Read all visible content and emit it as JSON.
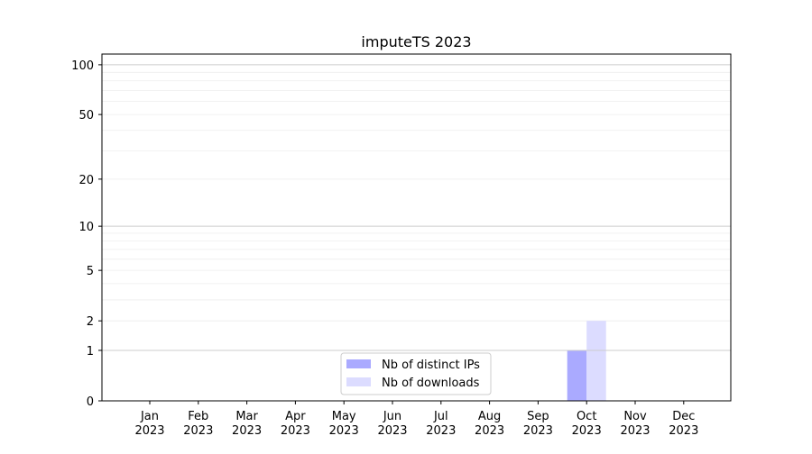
{
  "chart_data": {
    "type": "bar",
    "title": "imputeTS 2023",
    "xlabel": "",
    "ylabel": "",
    "yscale": "symlog (log of 1+y)",
    "ylim": [
      0,
      116
    ],
    "yticks": [
      0,
      1,
      2,
      5,
      10,
      20,
      50,
      100
    ],
    "grid": true,
    "legend_position": "lower-center",
    "categories": [
      "Jan\n2023",
      "Feb\n2023",
      "Mar\n2023",
      "Apr\n2023",
      "May\n2023",
      "Jun\n2023",
      "Jul\n2023",
      "Aug\n2023",
      "Sep\n2023",
      "Oct\n2023",
      "Nov\n2023",
      "Dec\n2023"
    ],
    "series": [
      {
        "name": "Nb of distinct IPs",
        "color": "#aaaaff",
        "values": [
          0,
          0,
          0,
          0,
          0,
          0,
          0,
          0,
          0,
          1,
          0,
          0
        ]
      },
      {
        "name": "Nb of downloads",
        "color": "#dcdcff",
        "values": [
          0,
          0,
          0,
          0,
          0,
          0,
          0,
          0,
          0,
          2,
          0,
          0
        ]
      }
    ]
  }
}
